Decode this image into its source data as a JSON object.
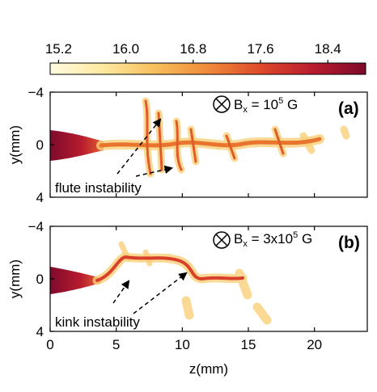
{
  "chart_data": [
    {
      "type": "colorbar",
      "clim": [
        15.1,
        18.85
      ],
      "ticks": [
        15.2,
        {
          "value": 16,
          "label": "16.0"
        },
        16.8,
        17.6,
        18.4
      ],
      "colors": [
        "#fffbe0",
        "#fde9a0",
        "#f7be5c",
        "#ef8a3a",
        "#de4a2a",
        "#b81c2e",
        "#7e0a2c"
      ]
    },
    {
      "type": "image",
      "panel_label": "(a)",
      "field_label": {
        "main": "B",
        "sub": "x",
        "eq": " = 10",
        "sup": "5",
        "unit": " G"
      },
      "annotation": "flute instability",
      "ylabel": "y(mm)",
      "xlim": [
        0,
        24
      ],
      "xticks": [
        0,
        5,
        10,
        15,
        20
      ],
      "ylim": [
        -4,
        4
      ],
      "y_inverted": true,
      "yticks": [
        {
          "value": -4,
          "label": "−4"
        },
        0,
        4
      ]
    },
    {
      "type": "image",
      "panel_label": "(b)",
      "field_label": {
        "main": "B",
        "sub": "x",
        "eq": " = 3x10",
        "sup": "5",
        "unit": " G"
      },
      "annotation": "kink instability",
      "ylabel": "y(mm)",
      "xlabel": "z(mm)",
      "xlim": [
        0,
        24
      ],
      "xticks": [
        0,
        5,
        10,
        15,
        20
      ],
      "ylim": [
        -4,
        4
      ],
      "y_inverted": true,
      "yticks": [
        {
          "value": -4,
          "label": "−4"
        },
        0,
        4
      ]
    }
  ]
}
